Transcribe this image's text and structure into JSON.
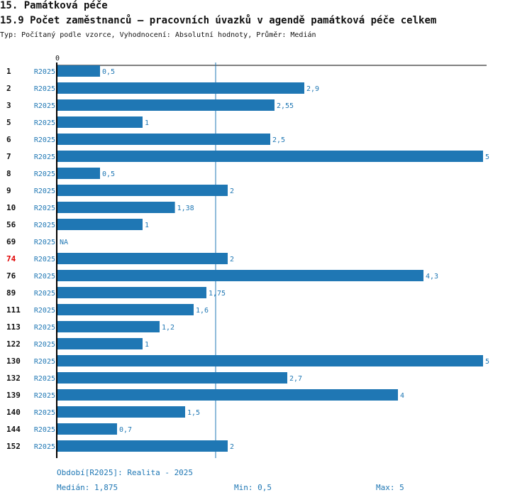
{
  "header": {
    "section": "15. Památková péče",
    "title": "15.9 Počet zaměstnanců – pracovních úvazků v agendě památková péče celkem",
    "subtitle": "Typ: Počítaný podle vzorce, Vyhodnocení: Absolutní hodnoty, Průměr: Medián"
  },
  "chart_data": {
    "type": "bar",
    "orientation": "horizontal",
    "axis_zero_label": "0",
    "xlim": [
      0,
      5
    ],
    "median": 1.875,
    "bar_color": "#1f77b4",
    "highlight_color": "#e00000",
    "rows": [
      {
        "id": "1",
        "period": "R2025",
        "value": 0.5,
        "label": "0,5"
      },
      {
        "id": "2",
        "period": "R2025",
        "value": 2.9,
        "label": "2,9"
      },
      {
        "id": "3",
        "period": "R2025",
        "value": 2.55,
        "label": "2,55"
      },
      {
        "id": "5",
        "period": "R2025",
        "value": 1,
        "label": "1"
      },
      {
        "id": "6",
        "period": "R2025",
        "value": 2.5,
        "label": "2,5"
      },
      {
        "id": "7",
        "period": "R2025",
        "value": 5,
        "label": "5"
      },
      {
        "id": "8",
        "period": "R2025",
        "value": 0.5,
        "label": "0,5"
      },
      {
        "id": "9",
        "period": "R2025",
        "value": 2,
        "label": "2"
      },
      {
        "id": "10",
        "period": "R2025",
        "value": 1.38,
        "label": "1,38"
      },
      {
        "id": "56",
        "period": "R2025",
        "value": 1,
        "label": "1"
      },
      {
        "id": "69",
        "period": "R2025",
        "value": null,
        "label": "NA"
      },
      {
        "id": "74",
        "period": "R2025",
        "value": 2,
        "label": "2",
        "highlight": true
      },
      {
        "id": "76",
        "period": "R2025",
        "value": 4.3,
        "label": "4,3"
      },
      {
        "id": "89",
        "period": "R2025",
        "value": 1.75,
        "label": "1,75"
      },
      {
        "id": "111",
        "period": "R2025",
        "value": 1.6,
        "label": "1,6"
      },
      {
        "id": "113",
        "period": "R2025",
        "value": 1.2,
        "label": "1,2"
      },
      {
        "id": "122",
        "period": "R2025",
        "value": 1,
        "label": "1"
      },
      {
        "id": "130",
        "period": "R2025",
        "value": 5,
        "label": "5"
      },
      {
        "id": "132",
        "period": "R2025",
        "value": 2.7,
        "label": "2,7"
      },
      {
        "id": "139",
        "period": "R2025",
        "value": 4,
        "label": "4"
      },
      {
        "id": "140",
        "period": "R2025",
        "value": 1.5,
        "label": "1,5"
      },
      {
        "id": "144",
        "period": "R2025",
        "value": 0.7,
        "label": "0,7"
      },
      {
        "id": "152",
        "period": "R2025",
        "value": 2,
        "label": "2"
      }
    ]
  },
  "footer": {
    "period": "Období[R2025]: Realita - 2025",
    "median": "Medián: 1,875",
    "min": "Min: 0,5",
    "max": "Max: 5"
  }
}
